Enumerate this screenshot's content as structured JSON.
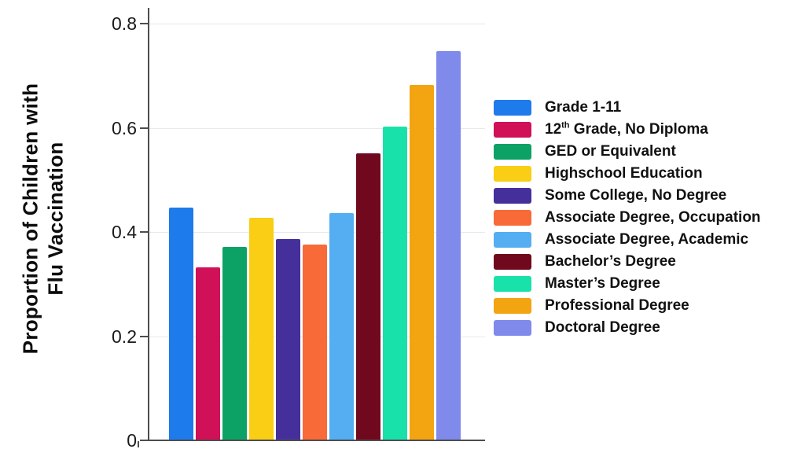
{
  "chart_data": {
    "type": "bar",
    "title": "",
    "xlabel": "",
    "ylabel": "Proportion of Children with Flu Vaccination",
    "ylabel_lines": [
      "Proportion of Children with",
      "Flu Vaccination"
    ],
    "ylim": [
      0,
      0.8
    ],
    "yticks": [
      0,
      0.2,
      0.4,
      0.6,
      0.8
    ],
    "ytick_labels": [
      "0",
      "0.2",
      "0.4",
      "0.6",
      "0.8"
    ],
    "grid": "faint horizontal gridlines at y ticks",
    "legend_position": "right",
    "categories": [
      "Grade 1-11",
      "12th Grade, No Diploma",
      "GED or Equivalent",
      "Highschool Education",
      "Some College, No Degree",
      "Associate Degree, Occupation",
      "Associate Degree, Academic",
      "Bachelor’s Degree",
      "Master’s Degree",
      "Professional Degree",
      "Doctoral Degree"
    ],
    "values": [
      0.445,
      0.33,
      0.37,
      0.425,
      0.385,
      0.375,
      0.435,
      0.55,
      0.6,
      0.68,
      0.745
    ],
    "colors": [
      "#1E7BEC",
      "#D01057",
      "#0DA265",
      "#F9CE14",
      "#45309B",
      "#F96A39",
      "#55ADF2",
      "#70091E",
      "#18E2AA",
      "#F2A411",
      "#7F8AEA"
    ],
    "legend_row_groups": [
      1,
      1,
      1,
      1,
      1,
      2,
      2,
      2,
      3,
      3,
      3
    ],
    "superscript_label": {
      "index": 1,
      "pre": "12",
      "sup": "th",
      "post": " Grade, No Diploma"
    },
    "axis_color": "#4d4d4d",
    "gridline_color": "#e9e9e9",
    "tick_label_color": "#1a1a1a"
  }
}
